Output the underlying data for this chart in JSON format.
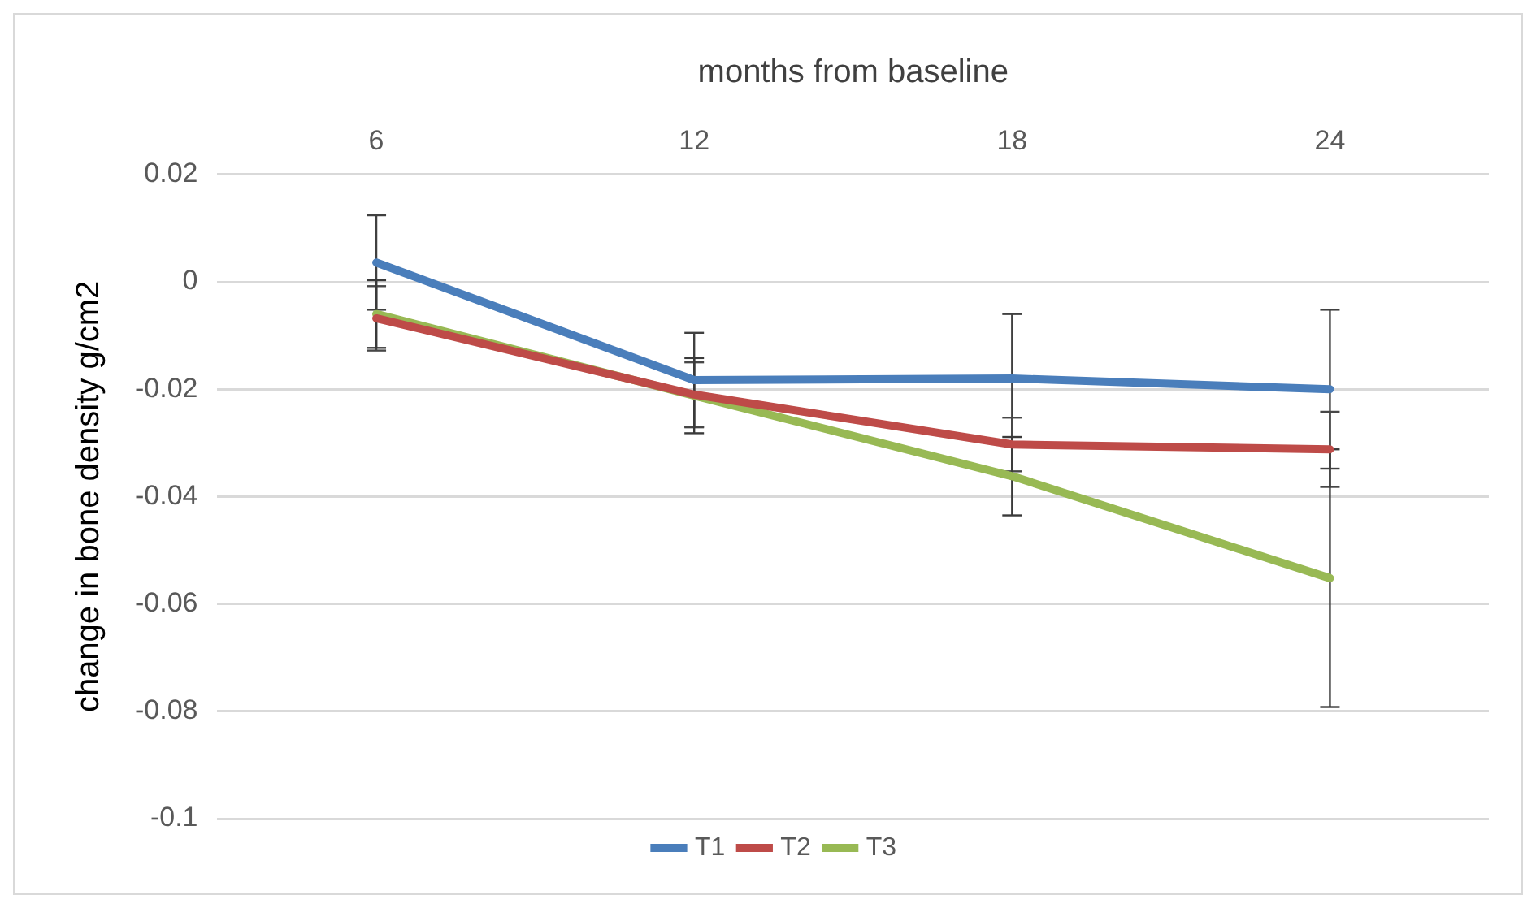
{
  "chart_data": {
    "type": "line",
    "xlabel": "months from baseline",
    "ylabel": "change in bone density g/cm2",
    "categories": [
      "6",
      "12",
      "18",
      "24"
    ],
    "series": [
      {
        "name": "T1",
        "color": "#4a7ebb",
        "values": [
          0.0036,
          -0.0183,
          -0.018,
          -0.02
        ],
        "errors": [
          0.0088,
          0.0088,
          0.012,
          0.0148
        ]
      },
      {
        "name": "T2",
        "color": "#be4b48",
        "values": [
          -0.0068,
          -0.021,
          -0.0303,
          -0.0312
        ],
        "errors": [
          0.006,
          0.006,
          0.005,
          0.007
        ]
      },
      {
        "name": "T3",
        "color": "#98b954",
        "values": [
          -0.006,
          -0.0212,
          -0.0362,
          -0.0552
        ],
        "errors": [
          0.0063,
          0.007,
          0.0073,
          0.024
        ]
      }
    ],
    "ylim": [
      -0.1,
      0.02
    ],
    "yticks": [
      -0.1,
      -0.08,
      -0.06,
      -0.04,
      -0.02,
      0,
      0.02
    ],
    "grid": "y",
    "legend": "bottom",
    "marker": "none",
    "line_style": "solid"
  }
}
